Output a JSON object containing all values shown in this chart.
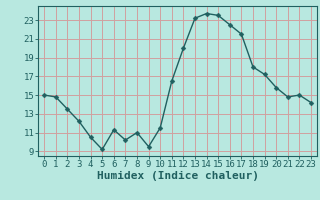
{
  "x": [
    0,
    1,
    2,
    3,
    4,
    5,
    6,
    7,
    8,
    9,
    10,
    11,
    12,
    13,
    14,
    15,
    16,
    17,
    18,
    19,
    20,
    21,
    22,
    23
  ],
  "y": [
    15,
    14.8,
    13.5,
    12.2,
    10.5,
    9.2,
    11.3,
    10.2,
    11.0,
    9.5,
    11.5,
    16.5,
    20.0,
    23.2,
    23.7,
    23.5,
    22.5,
    21.5,
    18.0,
    17.2,
    15.8,
    14.8,
    15.0,
    14.2
  ],
  "line_color": "#206060",
  "marker": "D",
  "marker_size": 2.5,
  "bg_color": "#b8e8e0",
  "grid_color": "#d0a0a0",
  "xlabel": "Humidex (Indice chaleur)",
  "ylim": [
    8.5,
    24.5
  ],
  "xlim": [
    -0.5,
    23.5
  ],
  "yticks": [
    9,
    11,
    13,
    15,
    17,
    19,
    21,
    23
  ],
  "xticks": [
    0,
    1,
    2,
    3,
    4,
    5,
    6,
    7,
    8,
    9,
    10,
    11,
    12,
    13,
    14,
    15,
    16,
    17,
    18,
    19,
    20,
    21,
    22,
    23
  ],
  "tick_color": "#206060",
  "tick_fontsize": 6.5,
  "xlabel_fontsize": 8,
  "linewidth": 1.0
}
